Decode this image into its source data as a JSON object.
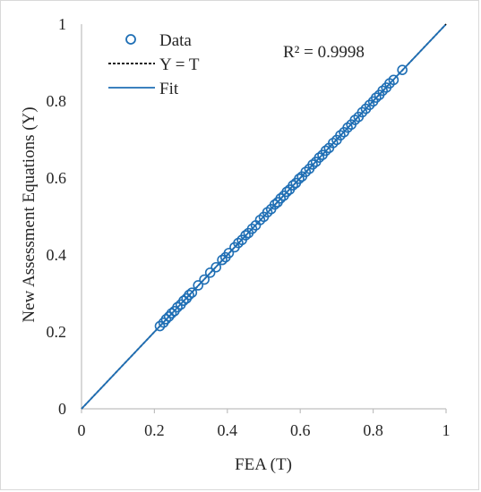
{
  "chart_data": {
    "type": "scatter",
    "xlabel": "FEA (T)",
    "ylabel": "New Assessment Equations (Y)",
    "xlim": [
      0,
      1
    ],
    "ylim": [
      0,
      1
    ],
    "x_ticks": [
      "0",
      "0.2",
      "0.4",
      "0.6",
      "0.8",
      "1"
    ],
    "y_ticks": [
      "0",
      "0.2",
      "0.4",
      "0.6",
      "0.8",
      "1"
    ],
    "grid": false,
    "legend_position": "top-left",
    "annotation": "R² = 0.9998",
    "colors": {
      "data": "#1f6fb5",
      "reference": "#000000",
      "fit": "#1f6fb5",
      "axis": "#bfbfbf"
    },
    "series": [
      {
        "name": "Data",
        "kind": "markers",
        "points": [
          [
            0.215,
            0.215
          ],
          [
            0.225,
            0.224
          ],
          [
            0.232,
            0.233
          ],
          [
            0.24,
            0.24
          ],
          [
            0.247,
            0.248
          ],
          [
            0.255,
            0.254
          ],
          [
            0.263,
            0.264
          ],
          [
            0.272,
            0.271
          ],
          [
            0.28,
            0.281
          ],
          [
            0.288,
            0.287
          ],
          [
            0.295,
            0.296
          ],
          [
            0.303,
            0.302
          ],
          [
            0.32,
            0.321
          ],
          [
            0.337,
            0.336
          ],
          [
            0.353,
            0.354
          ],
          [
            0.369,
            0.368
          ],
          [
            0.386,
            0.387
          ],
          [
            0.395,
            0.394
          ],
          [
            0.404,
            0.405
          ],
          [
            0.42,
            0.42
          ],
          [
            0.43,
            0.431
          ],
          [
            0.44,
            0.439
          ],
          [
            0.45,
            0.451
          ],
          [
            0.458,
            0.457
          ],
          [
            0.468,
            0.468
          ],
          [
            0.478,
            0.477
          ],
          [
            0.49,
            0.491
          ],
          [
            0.5,
            0.499
          ],
          [
            0.51,
            0.511
          ],
          [
            0.52,
            0.519
          ],
          [
            0.53,
            0.531
          ],
          [
            0.538,
            0.537
          ],
          [
            0.546,
            0.547
          ],
          [
            0.555,
            0.554
          ],
          [
            0.563,
            0.564
          ],
          [
            0.571,
            0.57
          ],
          [
            0.58,
            0.581
          ],
          [
            0.588,
            0.587
          ],
          [
            0.597,
            0.598
          ],
          [
            0.605,
            0.604
          ],
          [
            0.615,
            0.616
          ],
          [
            0.625,
            0.624
          ],
          [
            0.634,
            0.635
          ],
          [
            0.643,
            0.642
          ],
          [
            0.652,
            0.653
          ],
          [
            0.661,
            0.66
          ],
          [
            0.67,
            0.671
          ],
          [
            0.679,
            0.678
          ],
          [
            0.69,
            0.691
          ],
          [
            0.7,
            0.699
          ],
          [
            0.71,
            0.711
          ],
          [
            0.72,
            0.719
          ],
          [
            0.73,
            0.731
          ],
          [
            0.74,
            0.739
          ],
          [
            0.75,
            0.751
          ],
          [
            0.76,
            0.759
          ],
          [
            0.77,
            0.771
          ],
          [
            0.78,
            0.78
          ],
          [
            0.79,
            0.79
          ],
          [
            0.8,
            0.799
          ],
          [
            0.808,
            0.809
          ],
          [
            0.817,
            0.816
          ],
          [
            0.826,
            0.827
          ],
          [
            0.836,
            0.835
          ],
          [
            0.845,
            0.846
          ],
          [
            0.856,
            0.855
          ],
          [
            0.88,
            0.881
          ]
        ]
      },
      {
        "name": "Y = T",
        "kind": "dashed-line",
        "points": [
          [
            0,
            0
          ],
          [
            1,
            1
          ]
        ]
      },
      {
        "name": "Fit",
        "kind": "line",
        "points": [
          [
            0,
            0
          ],
          [
            0.998,
            0.998
          ]
        ]
      }
    ]
  }
}
